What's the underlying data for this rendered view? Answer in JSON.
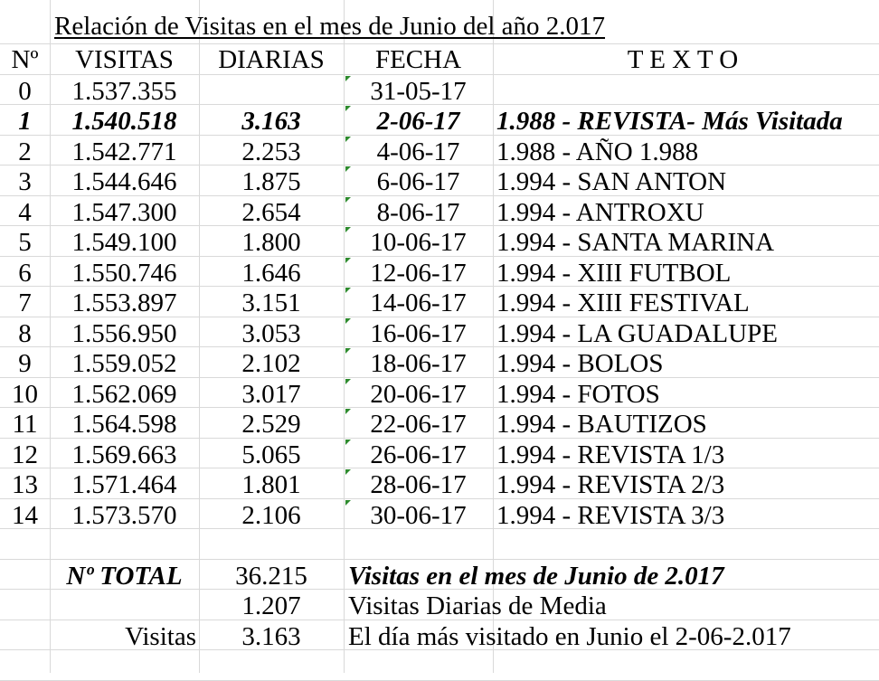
{
  "title": "Relación de Visitas en el mes de Junio del año 2.017",
  "headers": {
    "num": "Nº",
    "visitas": "VISITAS",
    "diarias": "DIARIAS",
    "fecha": "FECHA",
    "texto": "T E X T O"
  },
  "rows": [
    {
      "num": "0",
      "visitas": "1.537.355",
      "diarias": "",
      "fecha": "31-05-17",
      "texto": "",
      "bold": false
    },
    {
      "num": "1",
      "visitas": "1.540.518",
      "diarias": "3.163",
      "fecha": "2-06-17",
      "texto": "1.988 - REVISTA- Más Visitada",
      "bold": true
    },
    {
      "num": "2",
      "visitas": "1.542.771",
      "diarias": "2.253",
      "fecha": "4-06-17",
      "texto": "1.988 - AÑO 1.988",
      "bold": false
    },
    {
      "num": "3",
      "visitas": "1.544.646",
      "diarias": "1.875",
      "fecha": "6-06-17",
      "texto": "1.994 - SAN ANTON",
      "bold": false
    },
    {
      "num": "4",
      "visitas": "1.547.300",
      "diarias": "2.654",
      "fecha": "8-06-17",
      "texto": "1.994 - ANTROXU",
      "bold": false
    },
    {
      "num": "5",
      "visitas": "1.549.100",
      "diarias": "1.800",
      "fecha": "10-06-17",
      "texto": "1.994 - SANTA MARINA",
      "bold": false
    },
    {
      "num": "6",
      "visitas": "1.550.746",
      "diarias": "1.646",
      "fecha": "12-06-17",
      "texto": "1.994 - XIII FUTBOL",
      "bold": false
    },
    {
      "num": "7",
      "visitas": "1.553.897",
      "diarias": "3.151",
      "fecha": "14-06-17",
      "texto": "1.994 - XIII FESTIVAL",
      "bold": false
    },
    {
      "num": "8",
      "visitas": "1.556.950",
      "diarias": "3.053",
      "fecha": "16-06-17",
      "texto": "1.994 - LA GUADALUPE",
      "bold": false
    },
    {
      "num": "9",
      "visitas": "1.559.052",
      "diarias": "2.102",
      "fecha": "18-06-17",
      "texto": "1.994 - BOLOS",
      "bold": false
    },
    {
      "num": "10",
      "visitas": "1.562.069",
      "diarias": "3.017",
      "fecha": "20-06-17",
      "texto": "1.994 - FOTOS",
      "bold": false
    },
    {
      "num": "11",
      "visitas": "1.564.598",
      "diarias": "2.529",
      "fecha": "22-06-17",
      "texto": "1.994 - BAUTIZOS",
      "bold": false
    },
    {
      "num": "12",
      "visitas": "1.569.663",
      "diarias": "5.065",
      "fecha": "26-06-17",
      "texto": "1.994 - REVISTA  1/3",
      "bold": false
    },
    {
      "num": "13",
      "visitas": "1.571.464",
      "diarias": "1.801",
      "fecha": "28-06-17",
      "texto": "1.994 - REVISTA  2/3",
      "bold": false
    },
    {
      "num": "14",
      "visitas": "1.573.570",
      "diarias": "2.106",
      "fecha": "30-06-17",
      "texto": "1.994 - REVISTA  3/3",
      "bold": false
    }
  ],
  "summary": {
    "total_label": "Nº TOTAL",
    "total_value": "36.215",
    "total_text": "Visitas en el mes de Junio de 2.017",
    "average_value": "1.207",
    "average_text": "Visitas Diarias de Media",
    "max_label": "Visitas",
    "max_value": "3.163",
    "max_text": "El día más visitado en Junio el 2-06-2.017"
  },
  "colors": {
    "grid": "#d9d9d9",
    "cell_marker": "#2e8b2e"
  }
}
